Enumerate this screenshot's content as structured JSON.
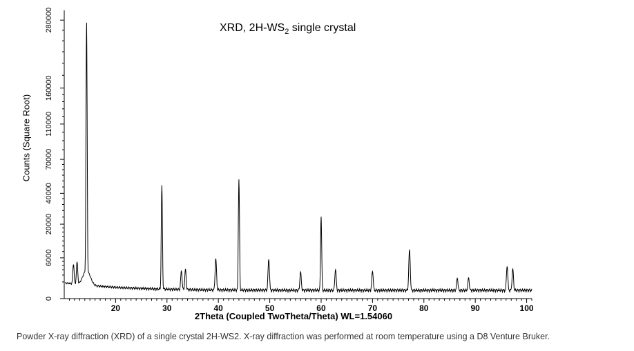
{
  "title": {
    "prefix": "XRD, 2H-WS",
    "sub": "2",
    "suffix": " single crystal"
  },
  "caption": "Powder X-ray diffraction (XRD) of a single crystal 2H-WS2. X-ray diffraction was performed at room temperature using a D8 Venture Bruker.",
  "chart_data": {
    "type": "line",
    "title": "XRD, 2H-WS2 single crystal",
    "xlabel": "2Theta (Coupled TwoTheta/Theta) WL=1.54060",
    "ylabel": "Counts (Square Root)",
    "xlim": [
      10,
      101
    ],
    "ylim": [
      0,
      300000
    ],
    "y_scale": "sqrt",
    "x_ticks": [
      20,
      30,
      40,
      50,
      60,
      70,
      80,
      90,
      100
    ],
    "y_ticks": [
      0,
      6000,
      20000,
      40000,
      70000,
      110000,
      160000,
      280000
    ],
    "grid": false,
    "peaks": [
      {
        "x": 11.8,
        "y": 3500
      },
      {
        "x": 12.5,
        "y": 4000
      },
      {
        "x": 14.35,
        "y": 272000
      },
      {
        "x": 29.0,
        "y": 46000
      },
      {
        "x": 32.8,
        "y": 2500
      },
      {
        "x": 33.6,
        "y": 2800
      },
      {
        "x": 39.5,
        "y": 5500
      },
      {
        "x": 44.0,
        "y": 51000
      },
      {
        "x": 49.8,
        "y": 5300
      },
      {
        "x": 56.0,
        "y": 2300
      },
      {
        "x": 60.0,
        "y": 24000
      },
      {
        "x": 62.8,
        "y": 2800
      },
      {
        "x": 70.0,
        "y": 2500
      },
      {
        "x": 77.2,
        "y": 8400
      },
      {
        "x": 86.5,
        "y": 1300
      },
      {
        "x": 88.7,
        "y": 1300
      },
      {
        "x": 96.2,
        "y": 3500
      },
      {
        "x": 97.3,
        "y": 3000
      }
    ]
  }
}
